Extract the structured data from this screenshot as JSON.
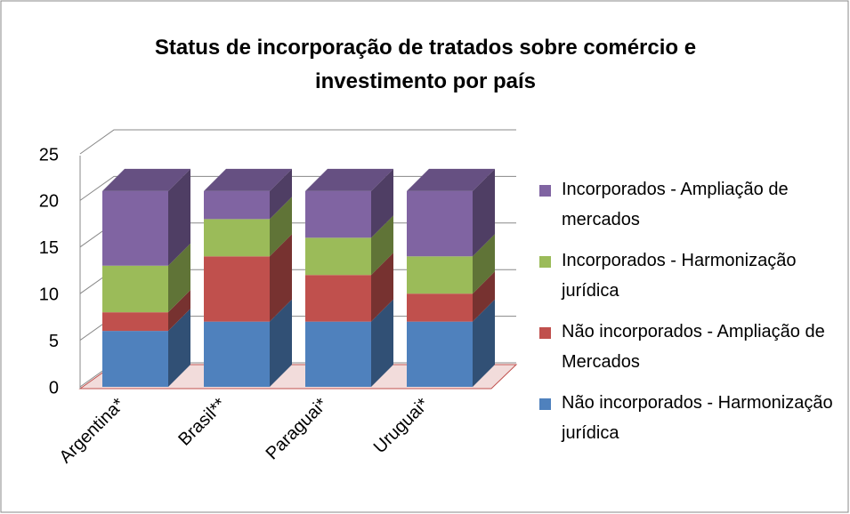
{
  "chart_data": {
    "type": "bar3d_stacked",
    "title": "Status de incorporação de tratados sobre comércio e investimento por país",
    "categories": [
      "Argentina*",
      "Brasil**",
      "Paraguai*",
      "Uruguai*"
    ],
    "series": [
      {
        "name": "Não incorporados - Harmonização jurídica",
        "color": "#4f81bd",
        "values": [
          6,
          7,
          7,
          7
        ]
      },
      {
        "name": "Não incorporados - Ampliação de Mercados",
        "color": "#c0504d",
        "values": [
          2,
          7,
          5,
          3
        ]
      },
      {
        "name": "Incorporados - Harmonização jurídica",
        "color": "#9bbb59",
        "values": [
          5,
          4,
          4,
          4
        ]
      },
      {
        "name": "Incorporados - Ampliação de mercados",
        "color": "#8064a2",
        "values": [
          8,
          3,
          5,
          7
        ]
      }
    ],
    "ylim": [
      0,
      25
    ],
    "yticks": [
      0,
      5,
      10,
      15,
      20,
      25
    ],
    "grid": true
  }
}
